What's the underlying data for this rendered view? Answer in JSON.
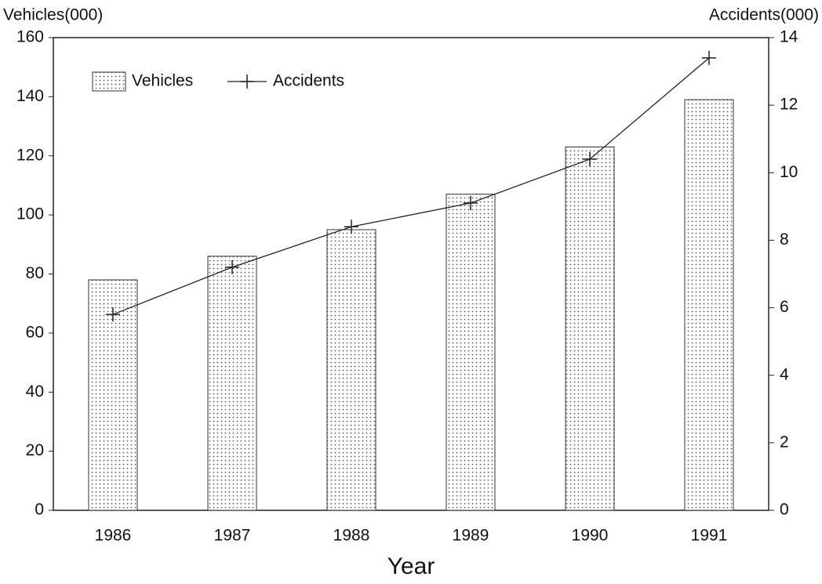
{
  "chart_data": {
    "type": "bar",
    "y_label": "Vehicles(000)",
    "y2_label": "Accidents(000)",
    "x_label": "Year",
    "categories": [
      "1986",
      "1987",
      "1988",
      "1989",
      "1990",
      "1991"
    ],
    "series": [
      {
        "name": "Vehicles",
        "type": "bar",
        "color": "#555555",
        "values": [
          78,
          86,
          95,
          107,
          123,
          139
        ]
      },
      {
        "name": "Accidents",
        "type": "line",
        "axis": "y2",
        "color": "#222222",
        "values": [
          5.8,
          7.2,
          8.4,
          9.1,
          10.4,
          13.4
        ]
      }
    ],
    "ylim": [
      0,
      160
    ],
    "yticks": [
      0,
      20,
      40,
      60,
      80,
      100,
      120,
      140,
      160
    ],
    "y2lim": [
      0,
      14
    ],
    "y2ticks": [
      0,
      2,
      4,
      6,
      8,
      10,
      12,
      14
    ],
    "legend": "top-left",
    "grid": false
  }
}
